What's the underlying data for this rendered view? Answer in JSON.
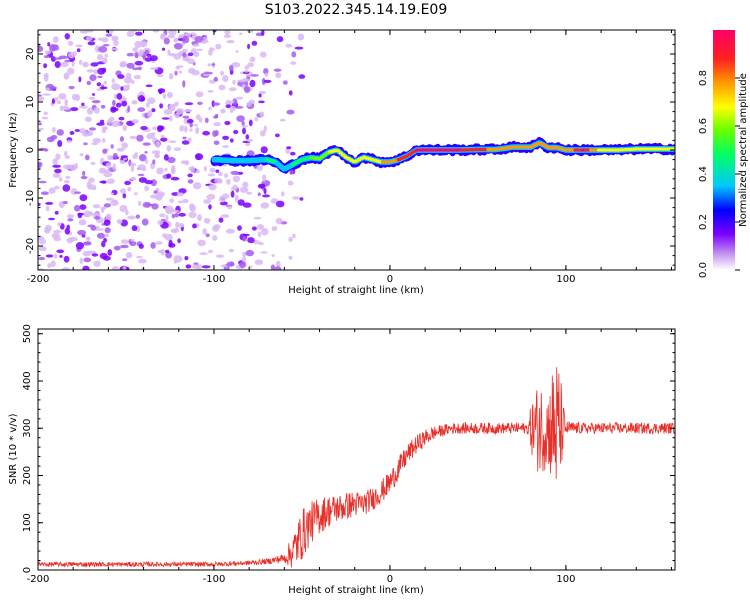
{
  "title": "S103.2022.345.14.19.E09",
  "chart_data": [
    {
      "type": "heatmap",
      "xlabel": "Height of straight line (km)",
      "ylabel": "Frequency (Hz)",
      "xlim": [
        -200,
        162
      ],
      "ylim": [
        -25,
        25
      ],
      "x_ticks": [
        -200,
        -100,
        0,
        100
      ],
      "y_ticks": [
        -20,
        -10,
        0,
        10,
        20
      ],
      "noise_region_x": [
        -200,
        -70
      ],
      "signal_trace": {
        "x": [
          -100,
          -90,
          -80,
          -70,
          -65,
          -60,
          -55,
          -50,
          -45,
          -40,
          -35,
          -30,
          -25,
          -20,
          -15,
          -10,
          -5,
          0,
          5,
          10,
          15,
          20,
          30,
          40,
          50,
          60,
          70,
          80,
          85,
          90,
          95,
          100,
          110,
          120,
          130,
          140,
          150,
          162
        ],
        "freq": [
          -2,
          -2.2,
          -2.2,
          -2,
          -2.5,
          -4,
          -3,
          -2,
          -1.6,
          -1.8,
          -0.5,
          0,
          -1.5,
          -2.5,
          -1.5,
          -2,
          -2.5,
          -2.5,
          -2,
          -1.2,
          0,
          0,
          0,
          0,
          0.1,
          0.1,
          0.6,
          0.6,
          1.5,
          0.5,
          0.5,
          0,
          0,
          0,
          0,
          0.2,
          0.2,
          0.2
        ],
        "amplitude": [
          0.25,
          0.35,
          0.4,
          0.45,
          0.45,
          0.35,
          0.45,
          0.5,
          0.55,
          0.6,
          0.65,
          0.7,
          0.65,
          0.65,
          0.65,
          0.7,
          0.75,
          0.82,
          0.85,
          0.85,
          0.95,
          0.97,
          0.97,
          0.95,
          0.9,
          0.8,
          0.78,
          0.8,
          0.75,
          0.8,
          0.75,
          0.78,
          0.95,
          0.7,
          0.68,
          0.7,
          0.7,
          0.7
        ]
      },
      "colorbar": {
        "label": "Normalized spectral amplitude",
        "range": [
          0,
          1
        ],
        "ticks": [
          "0.0",
          "0.2",
          "0.4",
          "0.6",
          "0.8"
        ],
        "colors": [
          "#ffffff",
          "#c9a0f0",
          "#7b00ff",
          "#0000ff",
          "#00c8ff",
          "#00ff66",
          "#66ff00",
          "#ffff00",
          "#ff9900",
          "#ff2020",
          "#ff0066"
        ]
      }
    },
    {
      "type": "line",
      "xlabel": "Height of straight line (km)",
      "ylabel": "SNR (10 * v/v)",
      "xlim": [
        -200,
        162
      ],
      "ylim": [
        0,
        510
      ],
      "x_ticks": [
        -200,
        -100,
        0,
        100
      ],
      "y_ticks": [
        0,
        100,
        200,
        300,
        400,
        500
      ],
      "color": "#e8302a",
      "series": [
        {
          "name": "SNR",
          "x": [
            -200,
            -150,
            -100,
            -80,
            -70,
            -60,
            -55,
            -50,
            -45,
            -40,
            -35,
            -30,
            -25,
            -20,
            -15,
            -10,
            -5,
            0,
            5,
            10,
            15,
            20,
            25,
            30,
            35,
            40,
            50,
            60,
            70,
            78,
            82,
            85,
            88,
            90,
            93,
            96,
            98,
            100,
            110,
            120,
            130,
            140,
            150,
            162
          ],
          "values": [
            12,
            12,
            12,
            15,
            18,
            25,
            40,
            75,
            100,
            115,
            125,
            130,
            135,
            140,
            140,
            150,
            165,
            185,
            215,
            245,
            265,
            280,
            290,
            295,
            300,
            300,
            300,
            300,
            300,
            300,
            300,
            300,
            300,
            300,
            300,
            300,
            300,
            300,
            300,
            300,
            300,
            300,
            300,
            300
          ],
          "noise_amplitude": [
            5,
            5,
            5,
            5,
            6,
            10,
            40,
            55,
            45,
            40,
            35,
            30,
            30,
            28,
            25,
            25,
            25,
            25,
            25,
            22,
            20,
            18,
            15,
            12,
            12,
            12,
            12,
            12,
            12,
            12,
            80,
            100,
            90,
            80,
            150,
            150,
            70,
            15,
            12,
            12,
            12,
            12,
            12,
            12
          ]
        }
      ]
    }
  ]
}
